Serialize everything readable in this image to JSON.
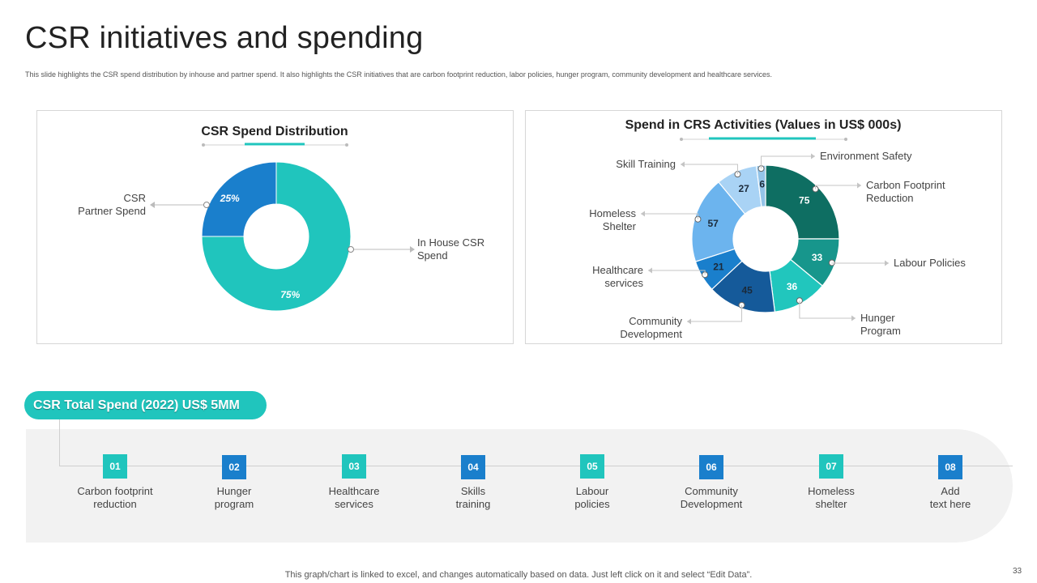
{
  "page": {
    "title": "CSR initiatives and spending",
    "subtitle": "This slide highlights the CSR  spend distribution by inhouse and partner spend. It also highlights the CSR  initiatives that are carbon footprint reduction, labor policies, hunger program, community  development and healthcare services.",
    "footer_note": "This graph/chart is linked to excel,  and changes automatically based on data. Just left click on it and select “Edit Data”.",
    "page_number": "33"
  },
  "chart_data": [
    {
      "type": "pie",
      "title": "CSR Spend Distribution",
      "slices": [
        {
          "name": "In House CSR Spend",
          "value": 75,
          "label": "75%",
          "callout": "In House CSR\nSpend",
          "color": "#20c5bd"
        },
        {
          "name": "CSR Partner Spend",
          "value": 25,
          "label": "25%",
          "callout": "CSR\nPartner Spend",
          "color": "#1a7fcc"
        }
      ]
    },
    {
      "type": "pie",
      "title": "Spend in CRS Activities (Values in US$ 000s)",
      "slices": [
        {
          "name": "Carbon Footprint Reduction",
          "value": 75,
          "callout": "Carbon Footprint\nReduction",
          "color": "#0e6e62"
        },
        {
          "name": "Labour Policies",
          "value": 33,
          "callout": "Labour  Policies",
          "color": "#17968c"
        },
        {
          "name": "Hunger Program",
          "value": 36,
          "callout": "Hunger\nProgram",
          "color": "#21c6bd"
        },
        {
          "name": "Community Development",
          "value": 45,
          "callout": "Community\nDevelopment",
          "color": "#155a9a"
        },
        {
          "name": "Healthcare services",
          "value": 21,
          "callout": "Healthcare\nservices",
          "color": "#1a7fcc"
        },
        {
          "name": "Homeless Shelter",
          "value": 57,
          "callout": "Homeless\nShelter",
          "color": "#6cb4ee"
        },
        {
          "name": "Skill Training",
          "value": 27,
          "callout": "Skill Training",
          "color": "#a9d3f5"
        },
        {
          "name": "Environment Safety",
          "value": 6,
          "callout": "Environment  Safety",
          "color": "#94c4e8"
        }
      ]
    }
  ],
  "total_spend": {
    "label": "CSR Total Spend (2022) US$ 5MM"
  },
  "steps": [
    {
      "num": "01",
      "label": "Carbon  footprint\nreduction",
      "color": "#20c5bd"
    },
    {
      "num": "02",
      "label": "Hunger\nprogram",
      "color": "#1a7fcc"
    },
    {
      "num": "03",
      "label": "Healthcare\nservices",
      "color": "#20c5bd"
    },
    {
      "num": "04",
      "label": "Skills\ntraining",
      "color": "#1a7fcc"
    },
    {
      "num": "05",
      "label": "Labour\npolicies",
      "color": "#20c5bd"
    },
    {
      "num": "06",
      "label": "Community\nDevelopment",
      "color": "#1a7fcc"
    },
    {
      "num": "07",
      "label": "Homeless\nshelter",
      "color": "#20c5bd"
    },
    {
      "num": "08",
      "label": "Add\ntext here",
      "color": "#1a7fcc"
    }
  ]
}
